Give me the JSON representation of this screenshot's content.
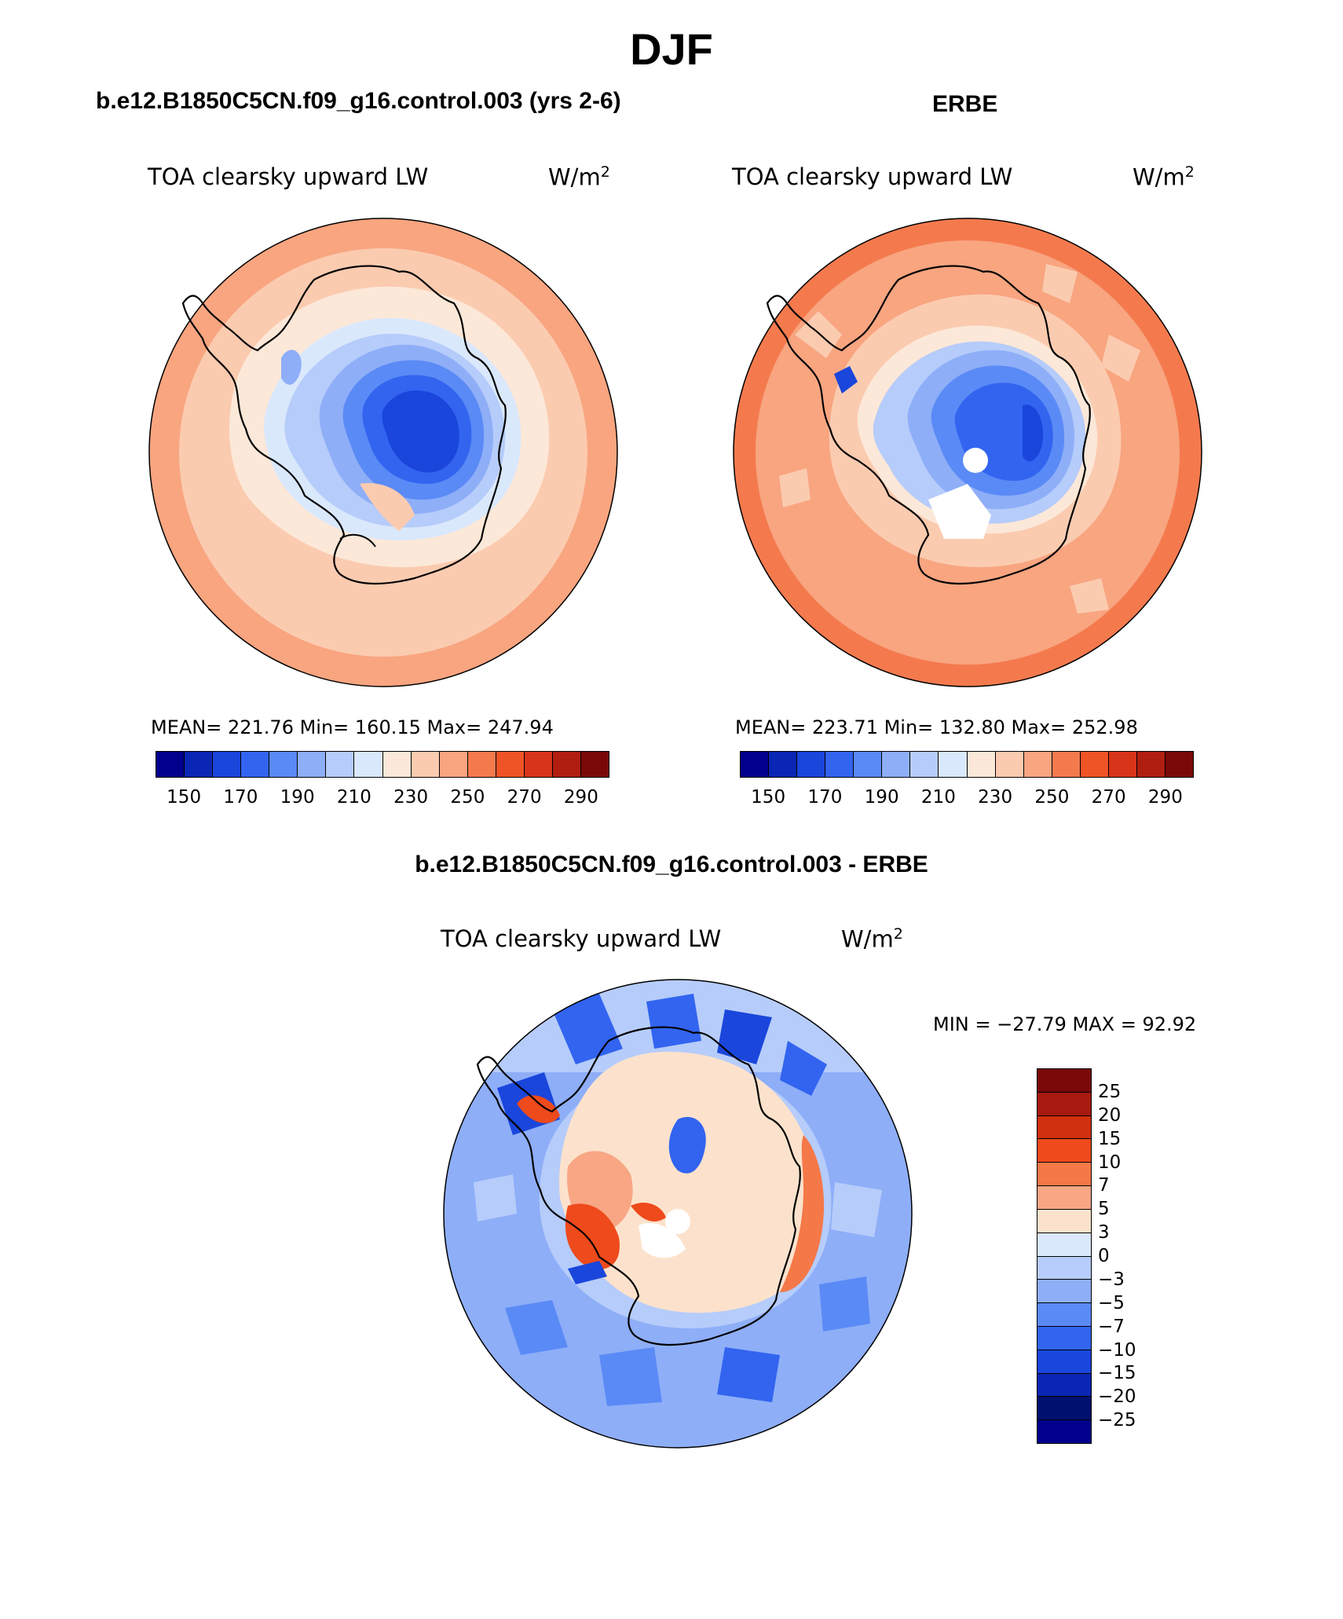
{
  "figure_title": "DJF",
  "panels": [
    {
      "title": "b.e12.B1850C5CN.f09_g16.control.003 (yrs 2-6)",
      "variable": "TOA clearsky upward LW",
      "units": "W/m",
      "units_exp": "2",
      "stats_line": "MEAN= 221.76   Min= 160.15   Max= 247.94",
      "ticks": [
        "150",
        "170",
        "190",
        "210",
        "230",
        "250",
        "270",
        "290"
      ]
    },
    {
      "title": "ERBE",
      "variable": "TOA clearsky upward LW",
      "units": "W/m",
      "units_exp": "2",
      "stats_line": "MEAN= 223.71   Min= 132.80   Max= 252.98",
      "ticks": [
        "150",
        "170",
        "190",
        "210",
        "230",
        "250",
        "270",
        "290"
      ]
    }
  ],
  "difference": {
    "title": "b.e12.B1850C5CN.f09_g16.control.003 - ERBE",
    "variable": "TOA clearsky upward LW",
    "units": "W/m",
    "units_exp": "2",
    "stats_line": "MIN = −27.79  MAX =   92.92",
    "ticks": [
      "25",
      "20",
      "15",
      "10",
      "7",
      "5",
      "3",
      "0",
      "−3",
      "−5",
      "−7",
      "−10",
      "−15",
      "−20",
      "−25"
    ]
  },
  "colors": {
    "abs_scale": [
      "#00008c",
      "#0a26b4",
      "#1a46dc",
      "#3264f0",
      "#5a8af5",
      "#8eaef8",
      "#b6ccfa",
      "#dae8fc",
      "#fce8d8",
      "#fbcbb0",
      "#f8a580",
      "#f47a4e",
      "#ef5426",
      "#d8341a",
      "#b01e10",
      "#7a0808"
    ],
    "diff_scale": [
      "#7a0808",
      "#a81a10",
      "#d0300e",
      "#ee4a1c",
      "#f47848",
      "#f8a684",
      "#fce2cc",
      "#dae8fc",
      "#b6ccfa",
      "#8eaef8",
      "#5a8af5",
      "#3264f0",
      "#1a46dc",
      "#0a26b4",
      "#00106e",
      "#00008c"
    ]
  }
}
